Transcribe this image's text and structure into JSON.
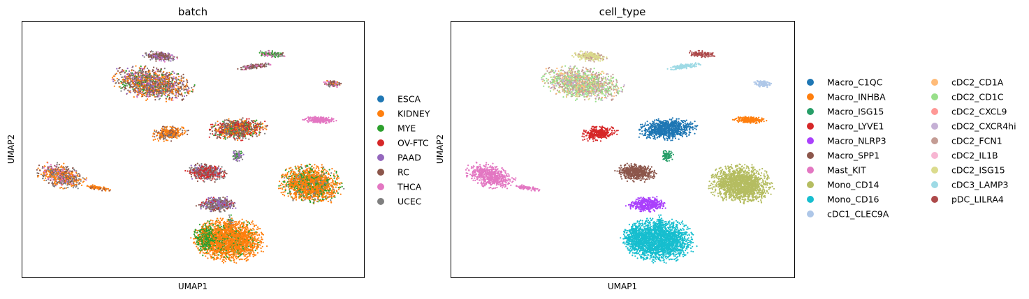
{
  "chart_data": [
    {
      "type": "scatter",
      "title": "batch",
      "xlabel": "UMAP1",
      "ylabel": "UMAP2",
      "xlim": [
        0,
        100
      ],
      "ylim": [
        0,
        100
      ],
      "grid": false,
      "legend_position": "right",
      "legend_columns": 1,
      "series": [
        {
          "name": "ESCA",
          "color": "#1f77b4"
        },
        {
          "name": "KIDNEY",
          "color": "#ff7f0e"
        },
        {
          "name": "MYE",
          "color": "#2ca02c"
        },
        {
          "name": "OV-FTC",
          "color": "#d62728"
        },
        {
          "name": "PAAD",
          "color": "#9467bd"
        },
        {
          "name": "RC",
          "color": "#8c564b"
        },
        {
          "name": "THCA",
          "color": "#e377c2"
        },
        {
          "name": "UCEC",
          "color": "#7f7f7f"
        }
      ],
      "clusters": [
        {
          "cx": 73.0,
          "cy": 87.3,
          "rx": 4.3,
          "ry": 1.5,
          "rot": -5,
          "n": 120,
          "mix": {
            "UCEC": 3,
            "THCA": 2,
            "MYE": 2,
            "RC": 1
          }
        },
        {
          "cx": 38.0,
          "cy": 75.8,
          "rx": 13.5,
          "ry": 7.0,
          "rot": -12,
          "n": 1400,
          "mix": {
            "RC": 4,
            "KIDNEY": 3,
            "UCEC": 2,
            "THCA": 1,
            "MYE": 1,
            "PAAD": 1
          }
        },
        {
          "cx": 40.5,
          "cy": 86.4,
          "rx": 5.5,
          "ry": 2.2,
          "rot": -8,
          "n": 260,
          "mix": {
            "RC": 3,
            "UCEC": 2,
            "PAAD": 2,
            "THCA": 1
          }
        },
        {
          "cx": 68.0,
          "cy": 82.5,
          "rx": 5.5,
          "ry": 1.1,
          "rot": 10,
          "n": 140,
          "mix": {
            "RC": 3,
            "THCA": 2,
            "UCEC": 2
          }
        },
        {
          "cx": 91.0,
          "cy": 75.8,
          "rx": 3.5,
          "ry": 1.5,
          "rot": -5,
          "n": 110,
          "mix": {
            "RC": 3,
            "UCEC": 2,
            "THCA": 2,
            "KIDNEY": 1
          }
        },
        {
          "cx": 87.0,
          "cy": 61.5,
          "rx": 5.5,
          "ry": 1.6,
          "rot": -3,
          "n": 210,
          "mix": {
            "THCA": 1
          }
        },
        {
          "cx": 63.0,
          "cy": 58.0,
          "rx": 10.0,
          "ry": 5.0,
          "rot": 8,
          "n": 900,
          "mix": {
            "RC": 3,
            "OV-FTC": 2,
            "UCEC": 2,
            "KIDNEY": 2,
            "MYE": 1
          }
        },
        {
          "cx": 43.0,
          "cy": 56.3,
          "rx": 6.0,
          "ry": 3.2,
          "rot": 10,
          "n": 330,
          "mix": {
            "KIDNEY": 5,
            "RC": 2,
            "UCEC": 1
          }
        },
        {
          "cx": 11.5,
          "cy": 39.5,
          "rx": 8.5,
          "ry": 5.0,
          "rot": -25,
          "n": 600,
          "mix": {
            "KIDNEY": 3,
            "RC": 2,
            "UCEC": 2,
            "THCA": 1
          }
        },
        {
          "cx": 22.0,
          "cy": 35.0,
          "rx": 4.5,
          "ry": 1.0,
          "rot": -12,
          "n": 90,
          "mix": {
            "KIDNEY": 3,
            "RC": 1
          }
        },
        {
          "cx": 54.0,
          "cy": 41.0,
          "rx": 7.0,
          "ry": 4.0,
          "rot": -5,
          "n": 520,
          "mix": {
            "OV-FTC": 3,
            "RC": 2,
            "UCEC": 2,
            "PAAD": 1
          }
        },
        {
          "cx": 57.0,
          "cy": 28.5,
          "rx": 6.5,
          "ry": 3.5,
          "rot": 0,
          "n": 420,
          "mix": {
            "PAAD": 3,
            "UCEC": 3,
            "RC": 2,
            "OV-FTC": 1
          }
        },
        {
          "cx": 84.5,
          "cy": 36.5,
          "rx": 10.5,
          "ry": 8.5,
          "rot": -15,
          "n": 1700,
          "mix": {
            "KIDNEY": 6,
            "MYE": 2,
            "UCEC": 1
          }
        },
        {
          "cx": 63.0,
          "cy": 47.5,
          "rx": 2.0,
          "ry": 2.5,
          "rot": 20,
          "n": 90,
          "mix": {
            "UCEC": 2,
            "PAAD": 2,
            "MYE": 1
          }
        },
        {
          "cx": 61.0,
          "cy": 21.0,
          "rx": 1.0,
          "ry": 4.0,
          "rot": 5,
          "n": 60,
          "mix": {
            "UCEC": 2,
            "PAAD": 1,
            "MYE": 1
          }
        },
        {
          "cx": 60.5,
          "cy": 14.5,
          "rx": 11.5,
          "ry": 9.5,
          "rot": 0,
          "n": 2200,
          "mix": {
            "KIDNEY": 6,
            "MYE": 1
          }
        },
        {
          "cx": 53.5,
          "cy": 15.5,
          "rx": 3.5,
          "ry": 7.5,
          "rot": 0,
          "n": 300,
          "mix": {
            "MYE": 3,
            "KIDNEY": 1
          }
        }
      ]
    },
    {
      "type": "scatter",
      "title": "cell_type",
      "xlabel": "UMAP1",
      "ylabel": "UMAP2",
      "xlim": [
        0,
        100
      ],
      "ylim": [
        0,
        100
      ],
      "grid": false,
      "legend_position": "right",
      "legend_columns": 2,
      "series": [
        {
          "name": "Macro_C1QC",
          "color": "#1f77b4"
        },
        {
          "name": "Macro_INHBA",
          "color": "#ff7f0e"
        },
        {
          "name": "Macro_ISG15",
          "color": "#279e68"
        },
        {
          "name": "Macro_LYVE1",
          "color": "#d62728"
        },
        {
          "name": "Macro_NLRP3",
          "color": "#aa40fc"
        },
        {
          "name": "Macro_SPP1",
          "color": "#8c564b"
        },
        {
          "name": "Mast_KIT",
          "color": "#e377c2"
        },
        {
          "name": "Mono_CD14",
          "color": "#b5bd61"
        },
        {
          "name": "Mono_CD16",
          "color": "#17becf"
        },
        {
          "name": "cDC1_CLEC9A",
          "color": "#aec7e8"
        },
        {
          "name": "cDC2_CD1A",
          "color": "#ffbb78"
        },
        {
          "name": "cDC2_CD1C",
          "color": "#98df8a"
        },
        {
          "name": "cDC2_CXCL9",
          "color": "#ff9896"
        },
        {
          "name": "cDC2_CXCR4hi",
          "color": "#c5b0d5"
        },
        {
          "name": "cDC2_FCN1",
          "color": "#c49c94"
        },
        {
          "name": "cDC2_IL1B",
          "color": "#f7b6d2"
        },
        {
          "name": "cDC2_ISG15",
          "color": "#dbdb8d"
        },
        {
          "name": "cDC3_LAMP3",
          "color": "#9edae5"
        },
        {
          "name": "pDC_LILRA4",
          "color": "#ad494a"
        }
      ],
      "clusters": [
        {
          "cx": 73.0,
          "cy": 87.3,
          "rx": 4.3,
          "ry": 1.5,
          "rot": -5,
          "n": 120,
          "mix": {
            "pDC_LILRA4": 1
          }
        },
        {
          "cx": 38.0,
          "cy": 75.8,
          "rx": 13.5,
          "ry": 7.0,
          "rot": -12,
          "n": 1400,
          "mix": {
            "cDC2_FCN1": 3,
            "cDC2_CD1C": 3,
            "cDC2_ISG15": 1,
            "cDC2_CXCR4hi": 1,
            "cDC2_CD1A": 1
          }
        },
        {
          "cx": 40.5,
          "cy": 86.4,
          "rx": 5.5,
          "ry": 2.2,
          "rot": -8,
          "n": 260,
          "mix": {
            "cDC2_ISG15": 3,
            "cDC2_FCN1": 1
          }
        },
        {
          "cx": 68.0,
          "cy": 82.5,
          "rx": 5.5,
          "ry": 1.1,
          "rot": 10,
          "n": 140,
          "mix": {
            "cDC3_LAMP3": 1
          }
        },
        {
          "cx": 91.0,
          "cy": 75.8,
          "rx": 3.5,
          "ry": 1.5,
          "rot": -5,
          "n": 110,
          "mix": {
            "cDC1_CLEC9A": 1
          }
        },
        {
          "cx": 87.0,
          "cy": 61.5,
          "rx": 5.5,
          "ry": 1.6,
          "rot": -3,
          "n": 210,
          "mix": {
            "Macro_INHBA": 1
          }
        },
        {
          "cx": 63.0,
          "cy": 58.0,
          "rx": 10.0,
          "ry": 5.0,
          "rot": 8,
          "n": 900,
          "mix": {
            "Macro_C1QC": 1
          }
        },
        {
          "cx": 43.0,
          "cy": 56.3,
          "rx": 6.0,
          "ry": 3.2,
          "rot": 10,
          "n": 330,
          "mix": {
            "Macro_LYVE1": 1
          }
        },
        {
          "cx": 11.5,
          "cy": 39.5,
          "rx": 8.5,
          "ry": 5.0,
          "rot": -25,
          "n": 600,
          "mix": {
            "Mast_KIT": 1
          }
        },
        {
          "cx": 22.0,
          "cy": 35.0,
          "rx": 4.5,
          "ry": 1.0,
          "rot": -12,
          "n": 90,
          "mix": {
            "Mast_KIT": 1
          }
        },
        {
          "cx": 54.0,
          "cy": 41.0,
          "rx": 7.0,
          "ry": 4.0,
          "rot": -5,
          "n": 520,
          "mix": {
            "Macro_SPP1": 1
          }
        },
        {
          "cx": 57.0,
          "cy": 28.5,
          "rx": 6.5,
          "ry": 3.5,
          "rot": 0,
          "n": 420,
          "mix": {
            "Macro_NLRP3": 1
          }
        },
        {
          "cx": 84.5,
          "cy": 36.5,
          "rx": 10.5,
          "ry": 8.5,
          "rot": -15,
          "n": 1700,
          "mix": {
            "Mono_CD14": 1
          }
        },
        {
          "cx": 63.0,
          "cy": 47.5,
          "rx": 2.0,
          "ry": 2.5,
          "rot": 20,
          "n": 90,
          "mix": {
            "Macro_ISG15": 1
          }
        },
        {
          "cx": 61.0,
          "cy": 21.0,
          "rx": 1.0,
          "ry": 4.0,
          "rot": 5,
          "n": 60,
          "mix": {
            "Mono_CD16": 1
          }
        },
        {
          "cx": 60.5,
          "cy": 14.5,
          "rx": 11.5,
          "ry": 9.5,
          "rot": 0,
          "n": 2200,
          "mix": {
            "Mono_CD16": 1
          }
        },
        {
          "cx": 53.5,
          "cy": 15.5,
          "rx": 3.5,
          "ry": 7.5,
          "rot": 0,
          "n": 300,
          "mix": {
            "Mono_CD16": 1
          }
        }
      ]
    }
  ]
}
